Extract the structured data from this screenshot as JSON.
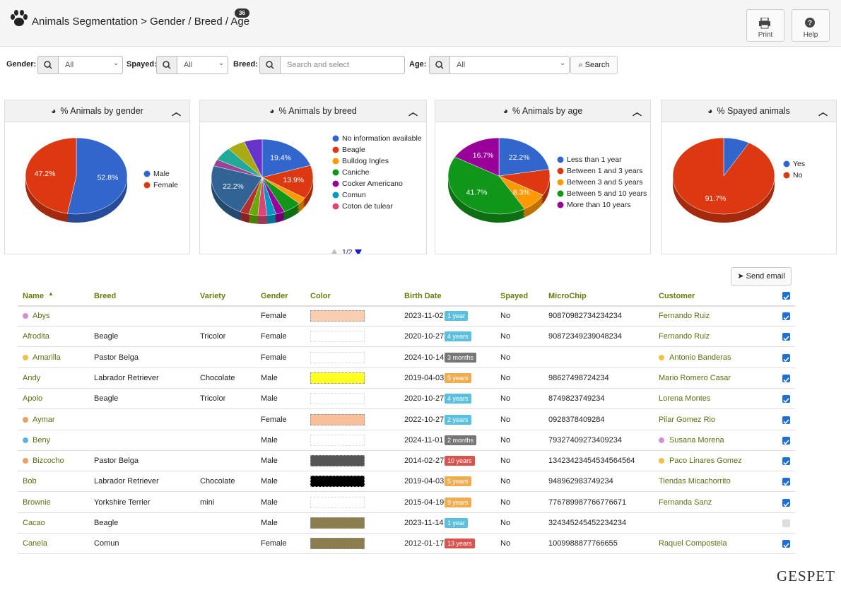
{
  "header": {
    "title": "Animals Segmentation > Gender / Breed / Age",
    "count": 36,
    "buttons": [
      "Print",
      "Help"
    ]
  },
  "filters": [
    {
      "label": "Gender:",
      "value": "All"
    },
    {
      "label": "Spayed:",
      "value": "All"
    },
    {
      "label": "Breed:",
      "placeholder": "Search and select"
    },
    {
      "label": "Age:",
      "value": "All"
    }
  ],
  "search": "Search",
  "chart_data": [
    {
      "type": "pie",
      "title": "% Animals by gender",
      "categories": [
        "Male",
        "Female"
      ],
      "values": [
        52.8,
        47.2
      ],
      "value_labels": [
        "52.8%",
        "47.2%"
      ],
      "colors": [
        "#3366cc",
        "#dc3912"
      ],
      "legend": "right"
    },
    {
      "type": "pie",
      "title": "% Animals by breed",
      "categories": [
        "No information available",
        "Beagle",
        "Bulldog Ingles",
        "Caniche",
        "Cocker Americano",
        "Comun",
        "Coton de tulear",
        null,
        null,
        null,
        null,
        null,
        null,
        null
      ],
      "values": [
        19.4,
        13.9,
        2.8,
        5.6,
        2.8,
        2.8,
        2.8,
        2.8,
        2.8,
        22.2,
        2.8,
        5.6,
        5.6,
        5.6
      ],
      "value_labels": [
        "19.4%",
        "13.9%",
        null,
        null,
        null,
        null,
        null,
        null,
        null,
        "22.2%",
        null,
        null,
        null,
        null
      ],
      "colors": [
        "#3366cc",
        "#dc3912",
        "#ff9900",
        "#109618",
        "#990099",
        "#0099c6",
        "#dd4477",
        "#66aa00",
        "#b82e2e",
        "#316395",
        "#994499",
        "#22aa99",
        "#aaaa11",
        "#6633cc"
      ],
      "legend": "right",
      "pager": "1/2"
    },
    {
      "type": "pie",
      "title": "% Animals by age",
      "categories": [
        "Less than 1 year",
        "Between 1 and 3 years",
        "Between 3 and 5 years",
        "Between 5 and 10 years",
        "More than 10 years"
      ],
      "values": [
        22.2,
        11.1,
        8.3,
        41.7,
        16.7
      ],
      "value_labels": [
        "22.2%",
        null,
        "8.3%",
        "41.7%",
        "16.7%"
      ],
      "colors": [
        "#3366cc",
        "#dc3912",
        "#ff9900",
        "#109618",
        "#990099"
      ],
      "legend": "right"
    },
    {
      "type": "pie",
      "title": "% Spayed animals",
      "categories": [
        "Yes",
        "No"
      ],
      "values": [
        8.3,
        91.7
      ],
      "value_labels": [
        null,
        "91.7%"
      ],
      "colors": [
        "#3366cc",
        "#dc3912"
      ],
      "legend": "right"
    }
  ],
  "send_email": "Send email",
  "table": {
    "columns": [
      "Name",
      "Breed",
      "Variety",
      "Gender",
      "Color",
      "Birth Date",
      "Spayed",
      "MicroChip",
      "Customer"
    ],
    "rows": [
      {
        "name": "Abys",
        "dot": "#d68fd6",
        "breed": null,
        "variety": null,
        "gender": "Female",
        "swatch": "#f8cdb0",
        "birth": "2023-11-02",
        "age": "1 year",
        "age_color": "#5bc0de",
        "spayed": "No",
        "microchip": "90870982734234234",
        "customer": "Fernando Ruiz",
        "customer_dot": null,
        "checked": true
      },
      {
        "name": "Afrodita",
        "dot": null,
        "breed": "Beagle",
        "variety": "Tricolor",
        "gender": "Female",
        "swatch": null,
        "birth": "2020-10-27",
        "age": "4 years",
        "age_color": "#5bc0de",
        "spayed": "No",
        "microchip": "90872349239048234",
        "customer": "Fernando Ruiz",
        "customer_dot": null,
        "checked": true
      },
      {
        "name": "Amarilla",
        "dot": "#f0c04a",
        "breed": "Pastor Belga",
        "variety": null,
        "gender": "Female",
        "swatch": null,
        "birth": "2024-10-14",
        "age": "3 months",
        "age_color": "#777777",
        "spayed": "No",
        "microchip": null,
        "customer": "Antonio Banderas",
        "customer_dot": "#f0c04a",
        "checked": true
      },
      {
        "name": "Andy",
        "dot": null,
        "breed": "Labrador Retriever",
        "variety": "Chocolate",
        "gender": "Male",
        "swatch": "#ffff22",
        "birth": "2019-04-03",
        "age": "5 years",
        "age_color": "#f0ad4e",
        "spayed": "No",
        "microchip": "98627498724234",
        "customer": "Mario Romero Casar",
        "customer_dot": null,
        "checked": true
      },
      {
        "name": "Apolo",
        "dot": null,
        "breed": "Beagle",
        "variety": "Tricolor",
        "gender": "Male",
        "swatch": null,
        "birth": "2020-10-27",
        "age": "4 years",
        "age_color": "#5bc0de",
        "spayed": "No",
        "microchip": "8749823749234",
        "customer": "Lorena Montes",
        "customer_dot": null,
        "checked": true
      },
      {
        "name": "Aymar",
        "dot": "#f0a060",
        "breed": null,
        "variety": null,
        "gender": "Female",
        "swatch": "#f8c09a",
        "birth": "2022-10-27",
        "age": "2 years",
        "age_color": "#5bc0de",
        "spayed": "No",
        "microchip": "0928378409284",
        "customer": "Pilar Gomez Rio",
        "customer_dot": null,
        "checked": true
      },
      {
        "name": "Beny",
        "dot": "#5ab4e8",
        "breed": null,
        "variety": null,
        "gender": "Male",
        "swatch": null,
        "birth": "2024-11-01",
        "age": "2 months",
        "age_color": "#777777",
        "spayed": "No",
        "microchip": "79327409273409234",
        "customer": "Susana Morena",
        "customer_dot": "#d68fd6",
        "checked": true
      },
      {
        "name": "Bizcocho",
        "dot": "#f0a060",
        "breed": "Pastor Belga",
        "variety": null,
        "gender": "Male",
        "swatch": "#555555",
        "birth": "2014-02-27",
        "age": "10 years",
        "age_color": "#d9534f",
        "spayed": "No",
        "microchip": "13423423454534564564",
        "customer": "Paco Linares Gomez",
        "customer_dot": "#f0c04a",
        "checked": true
      },
      {
        "name": "Bob",
        "dot": null,
        "breed": "Labrador Retriever",
        "variety": "Chocolate",
        "gender": "Male",
        "swatch": "#000000",
        "birth": "2019-04-03",
        "age": "5 years",
        "age_color": "#f0ad4e",
        "spayed": "No",
        "microchip": "948962983749234",
        "customer": "Tiendas Micachorrito",
        "customer_dot": null,
        "checked": true
      },
      {
        "name": "Brownie",
        "dot": null,
        "breed": "Yorkshire Terrier",
        "variety": "mini",
        "gender": "Male",
        "swatch": null,
        "birth": "2015-04-19",
        "age": "9 years",
        "age_color": "#f0ad4e",
        "spayed": "No",
        "microchip": "776789987766776671",
        "customer": "Fernanda Sanz",
        "customer_dot": null,
        "checked": true
      },
      {
        "name": "Cacao",
        "dot": null,
        "breed": "Beagle",
        "variety": null,
        "gender": "Male",
        "swatch": "#8c7d4e",
        "birth": "2023-11-14",
        "age": "1 year",
        "age_color": "#5bc0de",
        "spayed": "No",
        "microchip": "324345245452234234",
        "customer": null,
        "customer_dot": null,
        "checked": false
      },
      {
        "name": "Canela",
        "dot": null,
        "breed": "Comun",
        "variety": null,
        "gender": "Female",
        "swatch": "#8c7d4e",
        "birth": "2012-01-17",
        "age": "13 years",
        "age_color": "#d9534f",
        "spayed": "No",
        "microchip": "1009988877766655",
        "customer": "Raquel Compostela",
        "customer_dot": null,
        "checked": true
      }
    ]
  },
  "logo": "GESPET"
}
